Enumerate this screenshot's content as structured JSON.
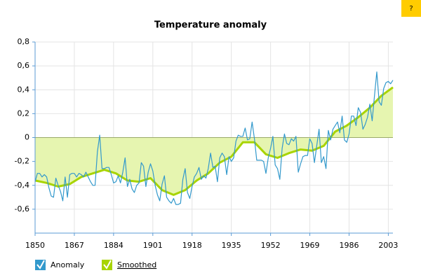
{
  "chart_data": {
    "type": "line",
    "title": "Temperature anomaly",
    "help_button": "?",
    "xlim": [
      1850,
      2005
    ],
    "xticks": [
      1850,
      1867,
      1884,
      1901,
      1918,
      1935,
      1952,
      1969,
      1986,
      2003
    ],
    "ylim": [
      -0.8,
      0.8
    ],
    "yticks": [
      {
        "value": -0.6,
        "label": "-0,6"
      },
      {
        "value": -0.4,
        "label": "-0,4"
      },
      {
        "value": -0.2,
        "label": "-0,2"
      },
      {
        "value": 0,
        "label": "0"
      },
      {
        "value": 0.2,
        "label": "0,2"
      },
      {
        "value": 0.4,
        "label": "0,4"
      },
      {
        "value": 0.6,
        "label": "0,6"
      },
      {
        "value": 0.8,
        "label": "0,8"
      }
    ],
    "grid": true,
    "series": [
      {
        "name": "Anomaly",
        "color": "#3399cc",
        "x": [
          1850,
          1851,
          1852,
          1853,
          1854,
          1855,
          1856,
          1857,
          1858,
          1859,
          1860,
          1861,
          1862,
          1863,
          1864,
          1865,
          1866,
          1867,
          1868,
          1869,
          1870,
          1871,
          1872,
          1873,
          1874,
          1875,
          1876,
          1877,
          1878,
          1879,
          1880,
          1881,
          1882,
          1883,
          1884,
          1885,
          1886,
          1887,
          1888,
          1889,
          1890,
          1891,
          1892,
          1893,
          1894,
          1895,
          1896,
          1897,
          1898,
          1899,
          1900,
          1901,
          1902,
          1903,
          1904,
          1905,
          1906,
          1907,
          1908,
          1909,
          1910,
          1911,
          1912,
          1913,
          1914,
          1915,
          1916,
          1917,
          1918,
          1919,
          1920,
          1921,
          1922,
          1923,
          1924,
          1925,
          1926,
          1927,
          1928,
          1929,
          1930,
          1931,
          1932,
          1933,
          1934,
          1935,
          1936,
          1937,
          1938,
          1939,
          1940,
          1941,
          1942,
          1943,
          1944,
          1945,
          1946,
          1947,
          1948,
          1949,
          1950,
          1951,
          1952,
          1953,
          1954,
          1955,
          1956,
          1957,
          1958,
          1959,
          1960,
          1961,
          1962,
          1963,
          1964,
          1965,
          1966,
          1967,
          1968,
          1969,
          1970,
          1971,
          1972,
          1973,
          1974,
          1975,
          1976,
          1977,
          1978,
          1979,
          1980,
          1981,
          1982,
          1983,
          1984,
          1985,
          1986,
          1987,
          1988,
          1989,
          1990,
          1991,
          1992,
          1993,
          1994,
          1995,
          1996,
          1997,
          1998,
          1999,
          2000,
          2001,
          2002,
          2003,
          2004,
          2005
        ],
        "values": [
          -0.37,
          -0.3,
          -0.3,
          -0.33,
          -0.31,
          -0.33,
          -0.42,
          -0.49,
          -0.5,
          -0.34,
          -0.4,
          -0.45,
          -0.53,
          -0.33,
          -0.5,
          -0.31,
          -0.3,
          -0.3,
          -0.33,
          -0.3,
          -0.31,
          -0.33,
          -0.29,
          -0.33,
          -0.37,
          -0.4,
          -0.4,
          -0.12,
          0.02,
          -0.26,
          -0.26,
          -0.25,
          -0.25,
          -0.31,
          -0.38,
          -0.37,
          -0.32,
          -0.38,
          -0.29,
          -0.17,
          -0.41,
          -0.35,
          -0.43,
          -0.46,
          -0.4,
          -0.38,
          -0.21,
          -0.24,
          -0.41,
          -0.29,
          -0.22,
          -0.28,
          -0.4,
          -0.48,
          -0.53,
          -0.39,
          -0.32,
          -0.5,
          -0.53,
          -0.55,
          -0.51,
          -0.56,
          -0.56,
          -0.55,
          -0.35,
          -0.26,
          -0.46,
          -0.51,
          -0.41,
          -0.33,
          -0.3,
          -0.25,
          -0.35,
          -0.32,
          -0.34,
          -0.26,
          -0.13,
          -0.25,
          -0.24,
          -0.37,
          -0.17,
          -0.13,
          -0.16,
          -0.31,
          -0.16,
          -0.2,
          -0.17,
          -0.03,
          0.02,
          0.01,
          0.01,
          0.08,
          -0.02,
          -0.01,
          0.13,
          -0.01,
          -0.19,
          -0.19,
          -0.19,
          -0.2,
          -0.3,
          -0.17,
          -0.09,
          0.01,
          -0.23,
          -0.26,
          -0.35,
          -0.09,
          0.03,
          -0.05,
          -0.06,
          -0.01,
          -0.03,
          0.01,
          -0.29,
          -0.22,
          -0.16,
          -0.15,
          -0.15,
          -0.01,
          -0.05,
          -0.21,
          -0.07,
          0.07,
          -0.21,
          -0.16,
          -0.26,
          0.06,
          -0.02,
          0.07,
          0.1,
          0.13,
          0.04,
          0.18,
          -0.02,
          -0.04,
          0.03,
          0.18,
          0.18,
          0.1,
          0.25,
          0.21,
          0.07,
          0.11,
          0.17,
          0.28,
          0.14,
          0.35,
          0.55,
          0.3,
          0.27,
          0.41,
          0.46,
          0.47,
          0.45,
          0.48
        ]
      },
      {
        "name": "Smoothed",
        "color": "#a8d400",
        "fill": "#e6f5b0",
        "x": [
          1850,
          1855,
          1860,
          1865,
          1870,
          1875,
          1880,
          1885,
          1890,
          1895,
          1900,
          1905,
          1910,
          1915,
          1920,
          1925,
          1930,
          1935,
          1940,
          1945,
          1950,
          1955,
          1960,
          1965,
          1970,
          1975,
          1980,
          1985,
          1990,
          1995,
          2000,
          2005
        ],
        "values": [
          -0.36,
          -0.38,
          -0.41,
          -0.39,
          -0.33,
          -0.3,
          -0.27,
          -0.3,
          -0.36,
          -0.37,
          -0.34,
          -0.44,
          -0.48,
          -0.44,
          -0.36,
          -0.3,
          -0.21,
          -0.16,
          -0.04,
          -0.04,
          -0.14,
          -0.17,
          -0.13,
          -0.1,
          -0.11,
          -0.07,
          0.05,
          0.1,
          0.17,
          0.25,
          0.35,
          0.42
        ]
      }
    ]
  }
}
